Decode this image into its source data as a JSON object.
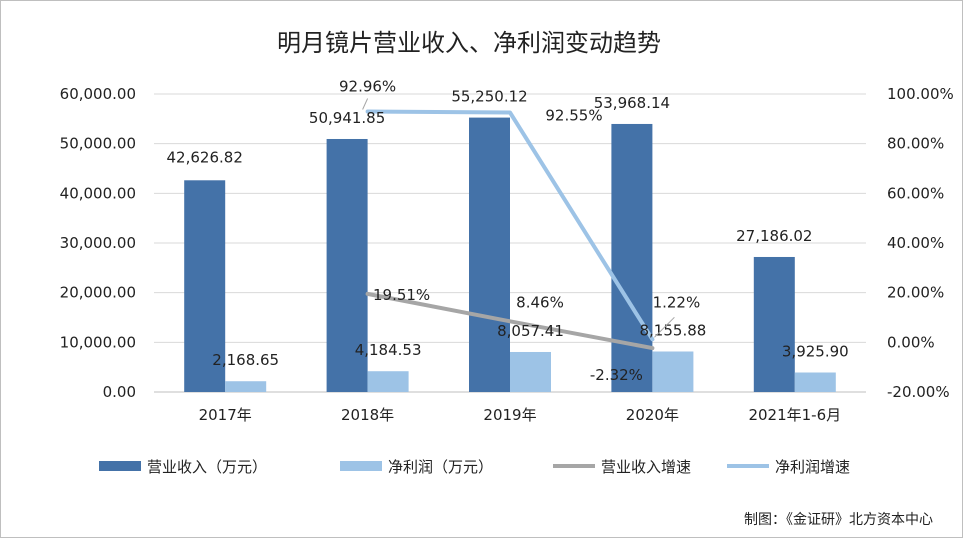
{
  "chart_data": {
    "type": "bar",
    "title": "明月镜片营业收入、净利润变动趋势",
    "categories": [
      "2017年",
      "2018年",
      "2019年",
      "2020年",
      "2021年1-6月"
    ],
    "y_left": {
      "ticks": [
        "60,000.00",
        "50,000.00",
        "40,000.00",
        "30,000.00",
        "20,000.00",
        "10,000.00",
        "0.00"
      ],
      "ylim": [
        0,
        60000
      ]
    },
    "y_right": {
      "ticks": [
        "100.00%",
        "80.00%",
        "60.00%",
        "40.00%",
        "20.00%",
        "0.00%",
        "-20.00%"
      ],
      "ylim": [
        -20,
        100
      ]
    },
    "series": [
      {
        "name": "营业收入（万元）",
        "kind": "bar",
        "axis": "left",
        "color": "#4472a8",
        "values": [
          42626.82,
          50941.85,
          55250.12,
          53968.14,
          27186.02
        ],
        "labels": [
          "42,626.82",
          "50,941.85",
          "55,250.12",
          "53,968.14",
          "27,186.02"
        ]
      },
      {
        "name": "净利润（万元）",
        "kind": "bar",
        "axis": "left",
        "color": "#9dc3e6",
        "values": [
          2168.65,
          4184.53,
          8057.41,
          8155.88,
          3925.9
        ],
        "labels": [
          "2,168.65",
          "4,184.53",
          "8,057.41",
          "8,155.88",
          "3,925.90"
        ]
      },
      {
        "name": "营业收入增速",
        "kind": "line",
        "axis": "right",
        "color": "#a6a6a6",
        "points": [
          {
            "x": "2018年",
            "y": 19.51
          },
          {
            "x": "2019年",
            "y": 8.46
          },
          {
            "x": "2020年",
            "y": -2.32
          }
        ],
        "labels": [
          "19.51%",
          "8.46%",
          "-2.32%"
        ]
      },
      {
        "name": "净利润增速",
        "kind": "line",
        "axis": "right",
        "color": "#9dc3e6",
        "points": [
          {
            "x": "2018年",
            "y": 92.96
          },
          {
            "x": "2019年",
            "y": 92.55
          },
          {
            "x": "2020年",
            "y": 1.22
          }
        ],
        "labels": [
          "92.96%",
          "92.55%",
          "1.22%"
        ]
      }
    ],
    "legend_position": "bottom",
    "grid": true,
    "source": "制图：《金证研》北方资本中心"
  }
}
